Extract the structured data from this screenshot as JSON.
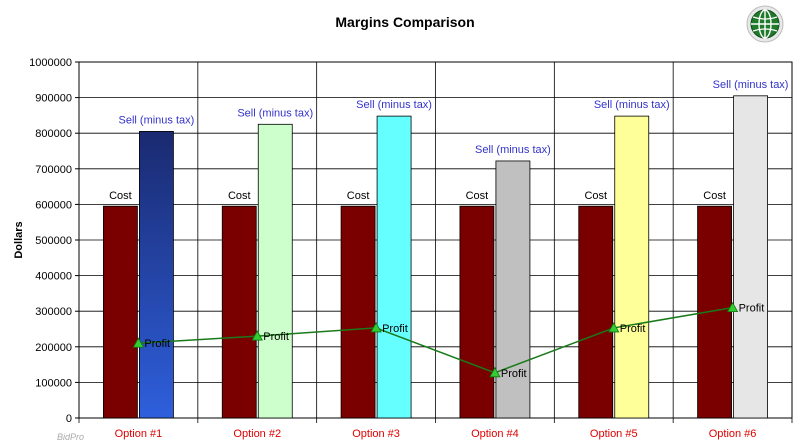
{
  "chart_data": {
    "type": "bar",
    "title": "Margins Comparison",
    "xlabel": "",
    "ylabel": "Dollars",
    "ylim": [
      0,
      1000000
    ],
    "yticks": [
      0,
      100000,
      200000,
      300000,
      400000,
      500000,
      600000,
      700000,
      800000,
      900000,
      1000000
    ],
    "categories": [
      "Option #1",
      "Option #2",
      "Option #3",
      "Option #4",
      "Option #5",
      "Option #6"
    ],
    "series": [
      {
        "name": "Cost",
        "kind": "bar",
        "values": [
          595000,
          595000,
          595000,
          595000,
          595000,
          595000
        ],
        "colors": [
          "#7a0000",
          "#7a0000",
          "#7a0000",
          "#7a0000",
          "#7a0000",
          "#7a0000"
        ],
        "data_labels": [
          "Cost",
          "Cost",
          "Cost",
          "Cost",
          "Cost",
          "Cost"
        ]
      },
      {
        "name": "Sell (minus tax)",
        "kind": "bar",
        "values": [
          805000,
          825000,
          848000,
          722000,
          848000,
          905000
        ],
        "colors": [
          "#2e5fdc",
          "#ccffcc",
          "#66ffff",
          "#c0c0c0",
          "#ffff99",
          "#e6e6e6"
        ],
        "data_labels": [
          "Sell (minus tax)",
          "Sell (minus tax)",
          "Sell (minus tax)",
          "Sell (minus tax)",
          "Sell (minus tax)",
          "Sell (minus tax)"
        ]
      },
      {
        "name": "Profit",
        "kind": "line",
        "values": [
          210000,
          230000,
          253000,
          127000,
          253000,
          310000
        ],
        "color": "#1a7a1a",
        "marker": "triangle",
        "data_labels": [
          "Profit",
          "Profit",
          "Profit",
          "Profit",
          "Profit",
          "Profit"
        ]
      }
    ],
    "grid": {
      "horizontal": true,
      "vertical_category_dividers": true
    },
    "watermark": "BidPro"
  },
  "logo": {
    "name": "globe-logo"
  }
}
